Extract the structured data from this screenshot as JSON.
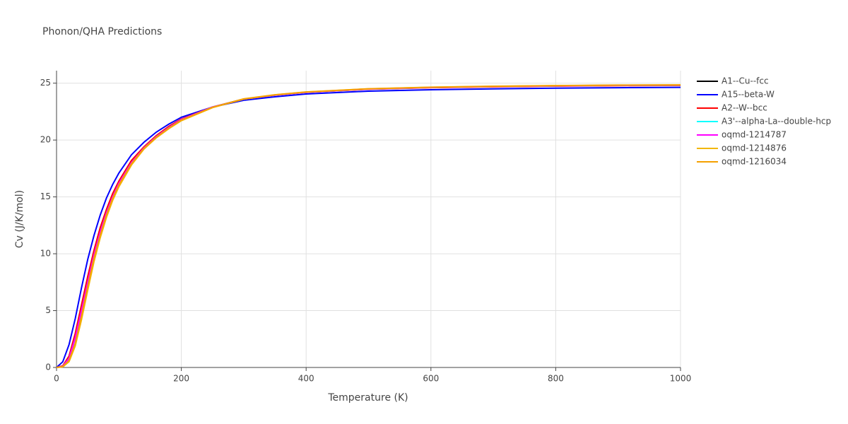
{
  "chart_data": {
    "type": "line",
    "title": "Phonon/QHA Predictions",
    "x_label": "Temperature (K)",
    "y_label": "Cv (J/K/mol)",
    "x": [
      0,
      10,
      20,
      30,
      40,
      50,
      60,
      70,
      80,
      90,
      100,
      120,
      140,
      160,
      180,
      200,
      250,
      300,
      350,
      400,
      500,
      600,
      700,
      800,
      900,
      1000
    ],
    "xlim": [
      0,
      1000
    ],
    "xticks": [
      0,
      200,
      400,
      600,
      800,
      1000
    ],
    "ylim": [
      0,
      26.1
    ],
    "yticks": [
      0,
      5,
      10,
      15,
      20,
      25
    ],
    "grid": true,
    "legend": "right",
    "series": [
      {
        "name": "A1--Cu--fcc",
        "color": "#000000",
        "values": [
          0,
          0.1,
          0.8,
          2.6,
          5.0,
          7.5,
          9.9,
          11.9,
          13.6,
          15.0,
          16.2,
          18.0,
          19.3,
          20.3,
          21.1,
          21.8,
          22.9,
          23.6,
          23.95,
          24.2,
          24.48,
          24.62,
          24.7,
          24.76,
          24.8,
          24.82
        ]
      },
      {
        "name": "A15--beta-W",
        "color": "#0000ff",
        "values": [
          0,
          0.5,
          2.0,
          4.3,
          7.0,
          9.5,
          11.6,
          13.4,
          14.9,
          16.1,
          17.1,
          18.7,
          19.8,
          20.7,
          21.4,
          22.0,
          22.9,
          23.5,
          23.8,
          24.05,
          24.3,
          24.42,
          24.5,
          24.56,
          24.6,
          24.63
        ]
      },
      {
        "name": "A2--W--bcc",
        "color": "#ff0000",
        "values": [
          0,
          0.15,
          1.0,
          3.0,
          5.5,
          8.0,
          10.3,
          12.3,
          13.9,
          15.3,
          16.4,
          18.2,
          19.4,
          20.4,
          21.2,
          21.85,
          22.9,
          23.6,
          23.95,
          24.2,
          24.47,
          24.6,
          24.68,
          24.74,
          24.78,
          24.8
        ]
      },
      {
        "name": "A3'--alpha-La--double-hcp",
        "color": "#00ffff",
        "values": [
          0,
          0.1,
          0.8,
          2.6,
          5.0,
          7.5,
          9.9,
          11.9,
          13.6,
          15.0,
          16.2,
          18.0,
          19.3,
          20.3,
          21.1,
          21.8,
          22.9,
          23.6,
          23.95,
          24.2,
          24.48,
          24.62,
          24.7,
          24.76,
          24.8,
          24.82
        ]
      },
      {
        "name": "oqmd-1214787",
        "color": "#ff00ff",
        "values": [
          0,
          0.1,
          0.8,
          2.6,
          5.0,
          7.5,
          9.9,
          11.9,
          13.6,
          15.0,
          16.2,
          18.0,
          19.3,
          20.3,
          21.1,
          21.8,
          22.9,
          23.6,
          23.95,
          24.2,
          24.48,
          24.62,
          24.7,
          24.76,
          24.8,
          24.82
        ]
      },
      {
        "name": "oqmd-1214876",
        "color": "#f2b705",
        "values": [
          0,
          0.05,
          0.5,
          1.9,
          4.2,
          6.8,
          9.3,
          11.4,
          13.2,
          14.7,
          15.9,
          17.8,
          19.2,
          20.2,
          21.0,
          21.7,
          22.85,
          23.6,
          23.97,
          24.22,
          24.5,
          24.64,
          24.72,
          24.78,
          24.82,
          24.84
        ]
      },
      {
        "name": "oqmd-1216034",
        "color": "#f5a000",
        "values": [
          0,
          0.08,
          0.6,
          2.1,
          4.5,
          7.1,
          9.6,
          11.6,
          13.4,
          14.85,
          16.05,
          17.9,
          19.25,
          20.25,
          21.05,
          21.75,
          22.88,
          23.62,
          23.98,
          24.23,
          24.51,
          24.65,
          24.73,
          24.79,
          24.83,
          24.85
        ]
      }
    ]
  }
}
